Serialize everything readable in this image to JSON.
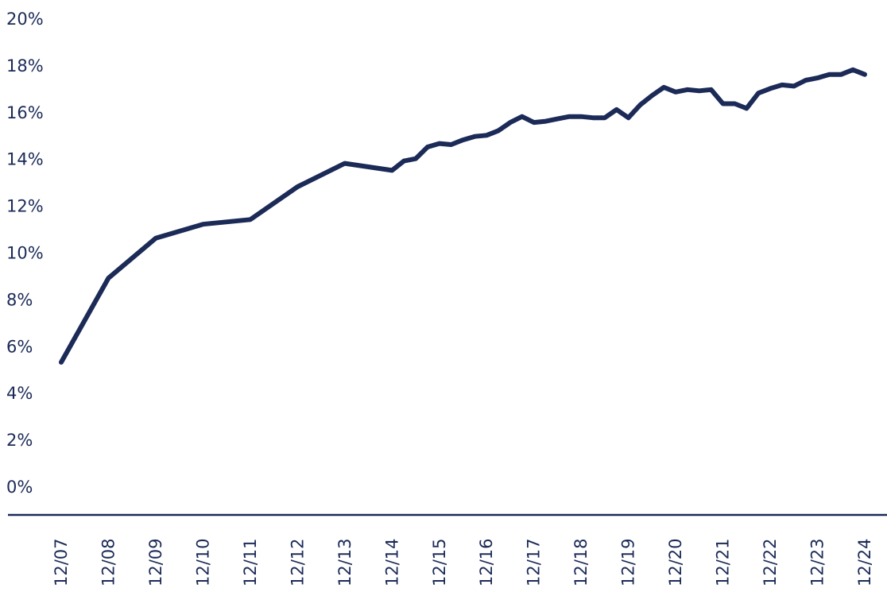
{
  "chart_data": {
    "type": "line",
    "title": "",
    "xlabel": "",
    "ylabel": "",
    "ylim": [
      0,
      20
    ],
    "grid": false,
    "line_color": "#1b2a57",
    "y_ticks": [
      "0%",
      "2%",
      "4%",
      "6%",
      "8%",
      "10%",
      "12%",
      "14%",
      "16%",
      "18%",
      "20%"
    ],
    "x_ticks": [
      "12/07",
      "12/08",
      "12/09",
      "12/10",
      "12/11",
      "12/12",
      "12/13",
      "12/14",
      "12/15",
      "12/16",
      "12/17",
      "12/18",
      "12/19",
      "12/20",
      "12/21",
      "12/22",
      "12/23",
      "12/24"
    ],
    "series": [
      {
        "x": [
          2007.92,
          2008.92,
          2009.92,
          2010.92,
          2011.92,
          2012.92,
          2013.92,
          2014.92,
          2015.17,
          2015.42,
          2015.67,
          2015.92,
          2016.17,
          2016.42,
          2016.67,
          2016.92,
          2017.17,
          2017.42,
          2017.67,
          2017.92,
          2018.17,
          2018.42,
          2018.67,
          2018.92,
          2019.17,
          2019.42,
          2019.67,
          2019.92,
          2020.17,
          2020.42,
          2020.67,
          2020.92,
          2021.17,
          2021.42,
          2021.67,
          2021.92,
          2022.17,
          2022.42,
          2022.67,
          2022.92,
          2023.17,
          2023.42,
          2023.67,
          2023.92,
          2024.17,
          2024.42,
          2024.67,
          2024.92
        ],
        "y": [
          5.3,
          8.9,
          10.6,
          11.2,
          11.4,
          12.8,
          13.8,
          13.5,
          13.9,
          14.0,
          14.5,
          14.65,
          14.6,
          14.8,
          14.95,
          15.0,
          15.2,
          15.55,
          15.8,
          15.55,
          15.6,
          15.7,
          15.8,
          15.8,
          15.75,
          15.75,
          16.1,
          15.75,
          16.3,
          16.7,
          17.05,
          16.85,
          16.95,
          16.9,
          16.95,
          16.35,
          16.35,
          16.15,
          16.8,
          17.0,
          17.15,
          17.1,
          17.35,
          17.45,
          17.6,
          17.6,
          17.8,
          17.6
        ]
      }
    ]
  }
}
